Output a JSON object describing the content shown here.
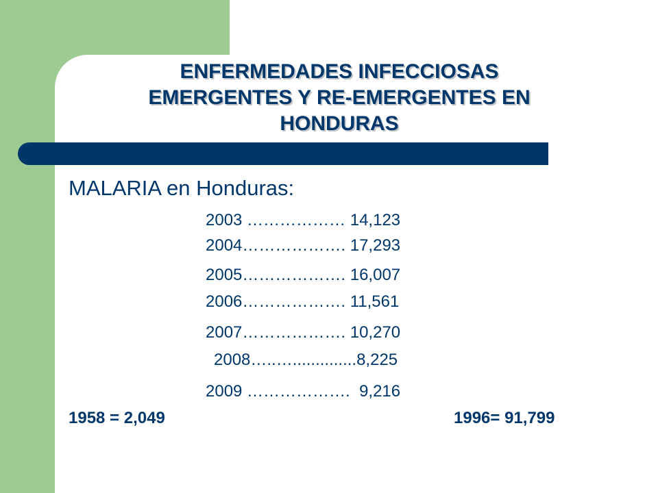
{
  "slide": {
    "title_lines": [
      "ENFERMEDADES INFECCIOSAS",
      "EMERGENTES Y RE-EMERGENTES EN",
      "HONDURAS"
    ],
    "subtitle": "MALARIA en Honduras:",
    "rows": [
      "2003 ……………… 14,123",
      "2004………………. 17,293",
      "2005………………. 16,007",
      "2006………………. 11,561",
      "2007………………. 10,270",
      "2008…..…..............8,225",
      "2009 ……………….  9,216"
    ],
    "footer_left": "1958 = 2,049",
    "footer_right": "1996= 91,799",
    "colors": {
      "accent_green": "#9dcc93",
      "navy": "#00376b"
    }
  }
}
